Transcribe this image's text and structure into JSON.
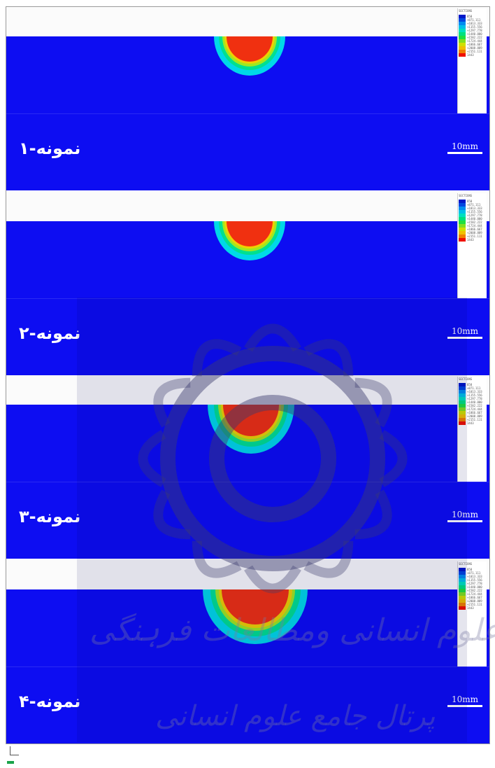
{
  "panels": [
    {
      "label": "نمونه-۱",
      "scale": "10mm",
      "legend_header": "SECTIONS",
      "pool_size": "small"
    },
    {
      "label": "نمونه-۲",
      "scale": "10mm",
      "legend_header": "SECTIONS",
      "pool_size": "small"
    },
    {
      "label": "نمونه-۳",
      "scale": "10mm",
      "legend_header": "SECTIONS",
      "pool_size": "medium"
    },
    {
      "label": "نمونه-۴",
      "scale": "10mm",
      "legend_header": "SECTIONS",
      "pool_size": "large"
    }
  ],
  "legend_values": [
    "858",
    "+871.111",
    "+1013.333",
    "+1155.556",
    "+1297.778",
    "+1440.000",
    "+1582.222",
    "+1724.444",
    "+1866.667",
    "+2008.889",
    "+2151.111",
    "1443"
  ],
  "colors": {
    "field": "#0d0df2",
    "legend": [
      "#0018c8",
      "#0046e0",
      "#008cf0",
      "#00c0e8",
      "#00e0c0",
      "#00e080",
      "#20e040",
      "#80e020",
      "#d0e000",
      "#f0c000",
      "#f08000",
      "#f01000"
    ]
  },
  "watermark": {
    "line1": "ژوہشگاه علوم انسانی ومطالعات فرہنگی",
    "line2": "پرتال جامع علوم انسانی"
  }
}
